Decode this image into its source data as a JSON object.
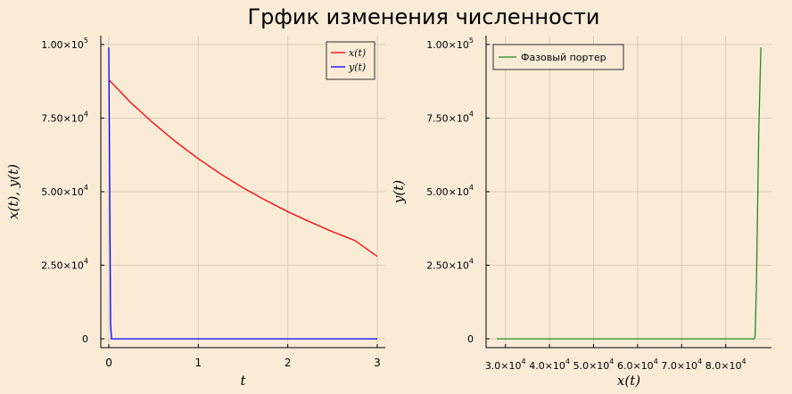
{
  "title": "Грфик изменения численности",
  "colors": {
    "background": "#faebd7",
    "x_series": "#ff0000",
    "y_series": "#0000ff",
    "phase": "#228b22",
    "grid": "#d9ccba",
    "axis": "#000000"
  },
  "chart_data": [
    {
      "type": "line",
      "xlabel": "x(t), y(t)",
      "xlabel_note": "",
      "x_axis_label": "t",
      "y_axis_label": "x(t), y(t)",
      "xlim": [
        -0.09,
        3.09
      ],
      "ylim": [
        -3000,
        103000
      ],
      "x_ticks": [
        0,
        1,
        2,
        3
      ],
      "x_tick_labels": [
        "0",
        "1",
        "2",
        "3"
      ],
      "y_ticks": [
        0,
        25000,
        50000,
        75000,
        100000
      ],
      "y_tick_labels": [
        {
          "mant": "0",
          "exp": ""
        },
        {
          "mant": "2.50×10",
          "exp": "4"
        },
        {
          "mant": "5.00×10",
          "exp": "4"
        },
        {
          "mant": "7.50×10",
          "exp": "4"
        },
        {
          "mant": "1.00×10",
          "exp": "5"
        }
      ],
      "grid": true,
      "legend_position": "top-right",
      "series": [
        {
          "name": "x(t)",
          "color": "#ff0000",
          "x": [
            0,
            0.25,
            0.5,
            0.75,
            1.0,
            1.25,
            1.5,
            1.75,
            2.0,
            2.25,
            2.5,
            2.75,
            3.0
          ],
          "y": [
            88000,
            80100,
            73200,
            66900,
            61200,
            56000,
            51300,
            47100,
            43200,
            39700,
            36400,
            33400,
            28000
          ]
        },
        {
          "name": "y(t)",
          "color": "#0000ff",
          "x": [
            0,
            0.01,
            0.02,
            0.03,
            0.05,
            0.5,
            1.0,
            2.0,
            3.0
          ],
          "y": [
            99000,
            50000,
            5000,
            0,
            0,
            0,
            0,
            0,
            0
          ]
        }
      ]
    },
    {
      "type": "line",
      "x_axis_label": "x(t)",
      "y_axis_label": "y(t)",
      "xlim": [
        25600,
        90400
      ],
      "ylim": [
        -3000,
        103000
      ],
      "x_ticks": [
        30000,
        40000,
        50000,
        60000,
        70000,
        80000
      ],
      "x_tick_labels": [
        {
          "mant": "3.0×10",
          "exp": "4"
        },
        {
          "mant": "4.0×10",
          "exp": "4"
        },
        {
          "mant": "5.0×10",
          "exp": "4"
        },
        {
          "mant": "6.0×10",
          "exp": "4"
        },
        {
          "mant": "7.0×10",
          "exp": "4"
        },
        {
          "mant": "8.0×10",
          "exp": "4"
        }
      ],
      "y_ticks": [
        0,
        25000,
        50000,
        75000,
        100000
      ],
      "y_tick_labels": [
        {
          "mant": "0",
          "exp": ""
        },
        {
          "mant": "2.50×10",
          "exp": "4"
        },
        {
          "mant": "5.00×10",
          "exp": "4"
        },
        {
          "mant": "7.50×10",
          "exp": "4"
        },
        {
          "mant": "1.00×10",
          "exp": "5"
        }
      ],
      "grid": true,
      "legend_position": "top-left",
      "series": [
        {
          "name": "Фазовый портер",
          "color": "#228b22",
          "x": [
            28000,
            40000,
            50000,
            60000,
            70000,
            80000,
            86500,
            86700,
            87000,
            87500,
            88000
          ],
          "y": [
            0,
            0,
            0,
            0,
            0,
            0,
            0,
            1000,
            20000,
            70000,
            99000
          ]
        }
      ]
    }
  ]
}
